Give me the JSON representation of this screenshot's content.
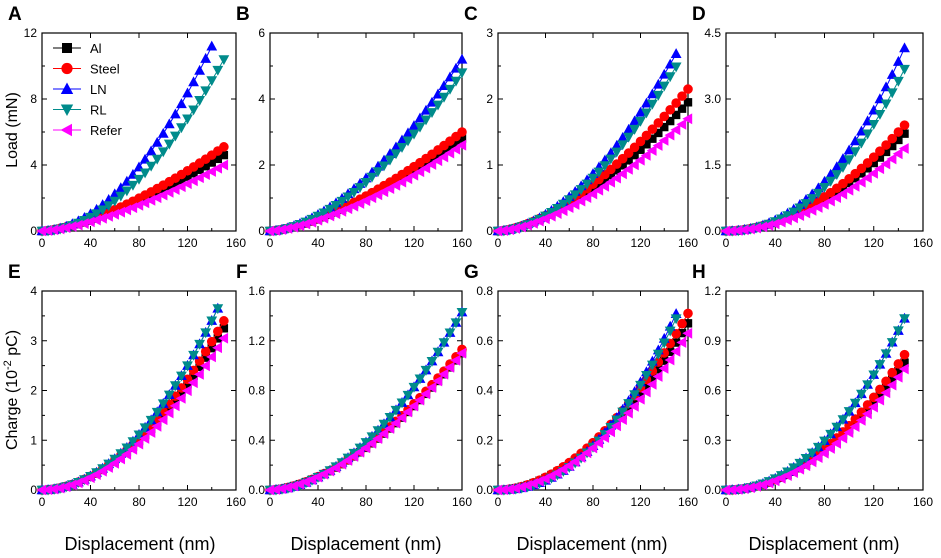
{
  "figure": {
    "ylabel_top": "Load (mN)",
    "ylabel_bottom": "Charge (10",
    "ylabel_bottom_exp": "-2",
    "ylabel_bottom_tail": " pC)"
  },
  "legend": [
    {
      "name": "Al",
      "color": "#000000",
      "marker": "square"
    },
    {
      "name": "Steel",
      "color": "#ff0000",
      "marker": "circle"
    },
    {
      "name": "LN",
      "color": "#0000ff",
      "marker": "triangle-up"
    },
    {
      "name": "RL",
      "color": "#008b8b",
      "marker": "triangle-down"
    },
    {
      "name": "Refer",
      "color": "#ff00ff",
      "marker": "triangle-left"
    }
  ],
  "chart_data": [
    {
      "type": "scatter",
      "title": "A",
      "xlabel": "",
      "ylabel": "Load (mN)",
      "xlim": [
        0,
        160
      ],
      "ylim": [
        0,
        12
      ],
      "xticks": [
        "0",
        "40",
        "80",
        "120",
        "160"
      ],
      "yticks": [
        "0",
        "4",
        "8",
        "12"
      ],
      "series": [
        {
          "name": "Al",
          "x_end": 150,
          "y_end": 4.6,
          "power": 1.5
        },
        {
          "name": "Steel",
          "x_end": 150,
          "y_end": 5.1,
          "power": 1.5
        },
        {
          "name": "LN",
          "x_end": 142,
          "y_end": 11.5,
          "power": 1.9
        },
        {
          "name": "RL",
          "x_end": 150,
          "y_end": 10.4,
          "power": 1.9
        },
        {
          "name": "Refer",
          "x_end": 150,
          "y_end": 4.0,
          "power": 1.5
        }
      ]
    },
    {
      "type": "scatter",
      "title": "B",
      "xlabel": "",
      "ylabel": "",
      "xlim": [
        0,
        160
      ],
      "ylim": [
        0,
        6
      ],
      "xticks": [
        "0",
        "40",
        "80",
        "120",
        "160"
      ],
      "yticks": [
        "0",
        "2",
        "4",
        "6"
      ],
      "series": [
        {
          "name": "Al",
          "x_end": 160,
          "y_end": 2.8,
          "power": 1.5
        },
        {
          "name": "Steel",
          "x_end": 160,
          "y_end": 3.0,
          "power": 1.5
        },
        {
          "name": "LN",
          "x_end": 160,
          "y_end": 5.2,
          "power": 1.7
        },
        {
          "name": "RL",
          "x_end": 160,
          "y_end": 4.8,
          "power": 1.7
        },
        {
          "name": "Refer",
          "x_end": 160,
          "y_end": 2.6,
          "power": 1.5
        }
      ]
    },
    {
      "type": "scatter",
      "title": "C",
      "xlabel": "",
      "ylabel": "",
      "xlim": [
        0,
        160
      ],
      "ylim": [
        0,
        3
      ],
      "xticks": [
        "0",
        "40",
        "80",
        "120",
        "160"
      ],
      "yticks": [
        "0",
        "1",
        "2",
        "3"
      ],
      "series": [
        {
          "name": "Al",
          "x_end": 160,
          "y_end": 1.95,
          "power": 1.6
        },
        {
          "name": "Steel",
          "x_end": 160,
          "y_end": 2.15,
          "power": 1.6
        },
        {
          "name": "LN",
          "x_end": 152,
          "y_end": 2.75,
          "power": 1.8
        },
        {
          "name": "RL",
          "x_end": 152,
          "y_end": 2.55,
          "power": 1.8
        },
        {
          "name": "Refer",
          "x_end": 160,
          "y_end": 1.7,
          "power": 1.6
        }
      ]
    },
    {
      "type": "scatter",
      "title": "D",
      "xlabel": "",
      "ylabel": "",
      "xlim": [
        0,
        160
      ],
      "ylim": [
        0,
        4.5
      ],
      "xticks": [
        "0",
        "40",
        "80",
        "120",
        "160"
      ],
      "yticks": [
        "0.0",
        "1.5",
        "3.0",
        "4.5"
      ],
      "series": [
        {
          "name": "Al",
          "x_end": 148,
          "y_end": 2.3,
          "power": 1.9
        },
        {
          "name": "Steel",
          "x_end": 148,
          "y_end": 2.5,
          "power": 1.9
        },
        {
          "name": "LN",
          "x_end": 148,
          "y_end": 4.35,
          "power": 2.2
        },
        {
          "name": "RL",
          "x_end": 148,
          "y_end": 3.85,
          "power": 2.2
        },
        {
          "name": "Refer",
          "x_end": 148,
          "y_end": 1.95,
          "power": 1.9
        }
      ]
    },
    {
      "type": "scatter",
      "title": "E",
      "xlabel": "Displacement (nm)",
      "ylabel": "Charge (10-2 pC)",
      "xlim": [
        0,
        160
      ],
      "ylim": [
        0,
        4
      ],
      "xticks": [
        "0",
        "40",
        "80",
        "120",
        "160"
      ],
      "yticks": [
        "0",
        "1",
        "2",
        "3",
        "4"
      ],
      "series": [
        {
          "name": "Al",
          "x_end": 150,
          "y_end": 3.25,
          "power": 1.9
        },
        {
          "name": "Steel",
          "x_end": 150,
          "y_end": 3.4,
          "power": 1.9
        },
        {
          "name": "LN",
          "x_end": 145,
          "y_end": 3.65,
          "power": 2.0
        },
        {
          "name": "RL",
          "x_end": 145,
          "y_end": 3.65,
          "power": 2.0
        },
        {
          "name": "Refer",
          "x_end": 150,
          "y_end": 3.05,
          "power": 1.9
        }
      ]
    },
    {
      "type": "scatter",
      "title": "F",
      "xlabel": "Displacement (nm)",
      "ylabel": "",
      "xlim": [
        0,
        160
      ],
      "ylim": [
        0,
        1.6
      ],
      "xticks": [
        "0",
        "40",
        "80",
        "120",
        "160"
      ],
      "yticks": [
        "0.0",
        "0.4",
        "0.8",
        "1.2",
        "1.6"
      ],
      "series": [
        {
          "name": "Al",
          "x_end": 160,
          "y_end": 1.1,
          "power": 1.7
        },
        {
          "name": "Steel",
          "x_end": 160,
          "y_end": 1.13,
          "power": 1.7
        },
        {
          "name": "LN",
          "x_end": 160,
          "y_end": 1.43,
          "power": 1.9
        },
        {
          "name": "RL",
          "x_end": 160,
          "y_end": 1.43,
          "power": 1.9
        },
        {
          "name": "Refer",
          "x_end": 160,
          "y_end": 1.1,
          "power": 1.7
        }
      ]
    },
    {
      "type": "scatter",
      "title": "G",
      "xlabel": "Displacement (nm)",
      "ylabel": "",
      "xlim": [
        0,
        160
      ],
      "ylim": [
        0,
        0.8
      ],
      "xticks": [
        "0",
        "40",
        "80",
        "120",
        "160"
      ],
      "yticks": [
        "0.0",
        "0.2",
        "0.4",
        "0.6",
        "0.8"
      ],
      "series": [
        {
          "name": "Al",
          "x_end": 160,
          "y_end": 0.67,
          "power": 1.9
        },
        {
          "name": "Steel",
          "x_end": 160,
          "y_end": 0.71,
          "power": 1.9
        },
        {
          "name": "LN",
          "x_end": 153,
          "y_end": 0.74,
          "power": 2.2
        },
        {
          "name": "RL",
          "x_end": 153,
          "y_end": 0.72,
          "power": 2.2
        },
        {
          "name": "Refer",
          "x_end": 160,
          "y_end": 0.63,
          "power": 1.9
        }
      ]
    },
    {
      "type": "scatter",
      "title": "H",
      "xlabel": "Displacement (nm)",
      "ylabel": "",
      "xlim": [
        0,
        160
      ],
      "ylim": [
        0,
        1.2
      ],
      "xticks": [
        "0",
        "40",
        "80",
        "120",
        "160"
      ],
      "yticks": [
        "0.0",
        "0.3",
        "0.6",
        "0.9",
        "1.2"
      ],
      "series": [
        {
          "name": "Al",
          "x_end": 148,
          "y_end": 0.8,
          "power": 2.0
        },
        {
          "name": "Steel",
          "x_end": 148,
          "y_end": 0.85,
          "power": 2.0
        },
        {
          "name": "LN",
          "x_end": 148,
          "y_end": 1.08,
          "power": 2.1
        },
        {
          "name": "RL",
          "x_end": 148,
          "y_end": 1.08,
          "power": 2.1
        },
        {
          "name": "Refer",
          "x_end": 148,
          "y_end": 0.76,
          "power": 2.0
        }
      ]
    }
  ]
}
